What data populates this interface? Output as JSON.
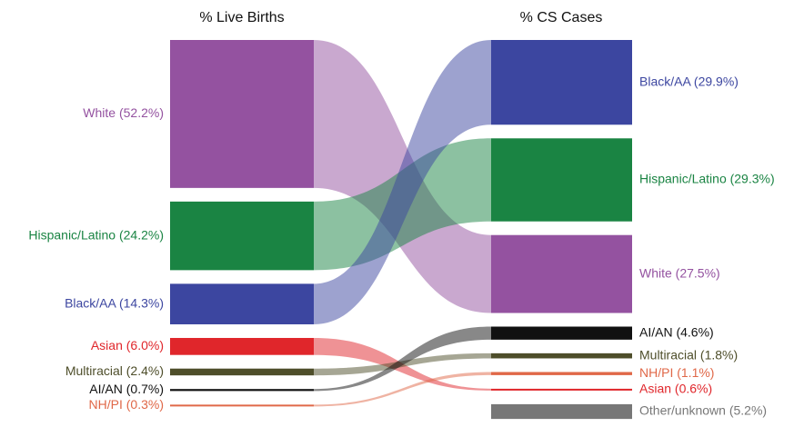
{
  "chart_data": {
    "type": "sankey",
    "left_title": "% Live Births",
    "right_title": "% CS Cases",
    "left_order": [
      0,
      1,
      2,
      3,
      4,
      5,
      6
    ],
    "right_order": [
      2,
      1,
      0,
      5,
      4,
      6,
      3,
      7
    ],
    "groups": [
      {
        "color": "#9452a0",
        "left_label": "White (52.2%)",
        "left_value": 52.2,
        "right_label": "White (27.5%)",
        "right_value": 27.5
      },
      {
        "color": "#1a8443",
        "left_label": "Hispanic/Latino (24.2%)",
        "left_value": 24.2,
        "right_label": "Hispanic/Latino (29.3%)",
        "right_value": 29.3
      },
      {
        "color": "#3c46a0",
        "left_label": "Black/AA (14.3%)",
        "left_value": 14.3,
        "right_label": "Black/AA (29.9%)",
        "right_value": 29.9
      },
      {
        "color": "#e0262b",
        "left_label": "Asian (6.0%)",
        "left_value": 6.0,
        "right_label": "Asian (0.6%)",
        "right_value": 0.6
      },
      {
        "color": "#4e4e2a",
        "left_label": "Multiracial (2.4%)",
        "left_value": 2.4,
        "right_label": "Multiracial (1.8%)",
        "right_value": 1.8
      },
      {
        "color": "#111111",
        "left_label": "AI/AN (0.7%)",
        "left_value": 0.7,
        "right_label": "AI/AN (4.6%)",
        "right_value": 4.6
      },
      {
        "color": "#e06848",
        "left_label": "NH/PI (0.3%)",
        "left_value": 0.3,
        "right_label": "NH/PI (1.1%)",
        "right_value": 1.1
      },
      {
        "color": "#777777",
        "left_label": null,
        "left_value": null,
        "right_label": "Other/unknown (5.2%)",
        "right_value": 5.2
      }
    ]
  }
}
